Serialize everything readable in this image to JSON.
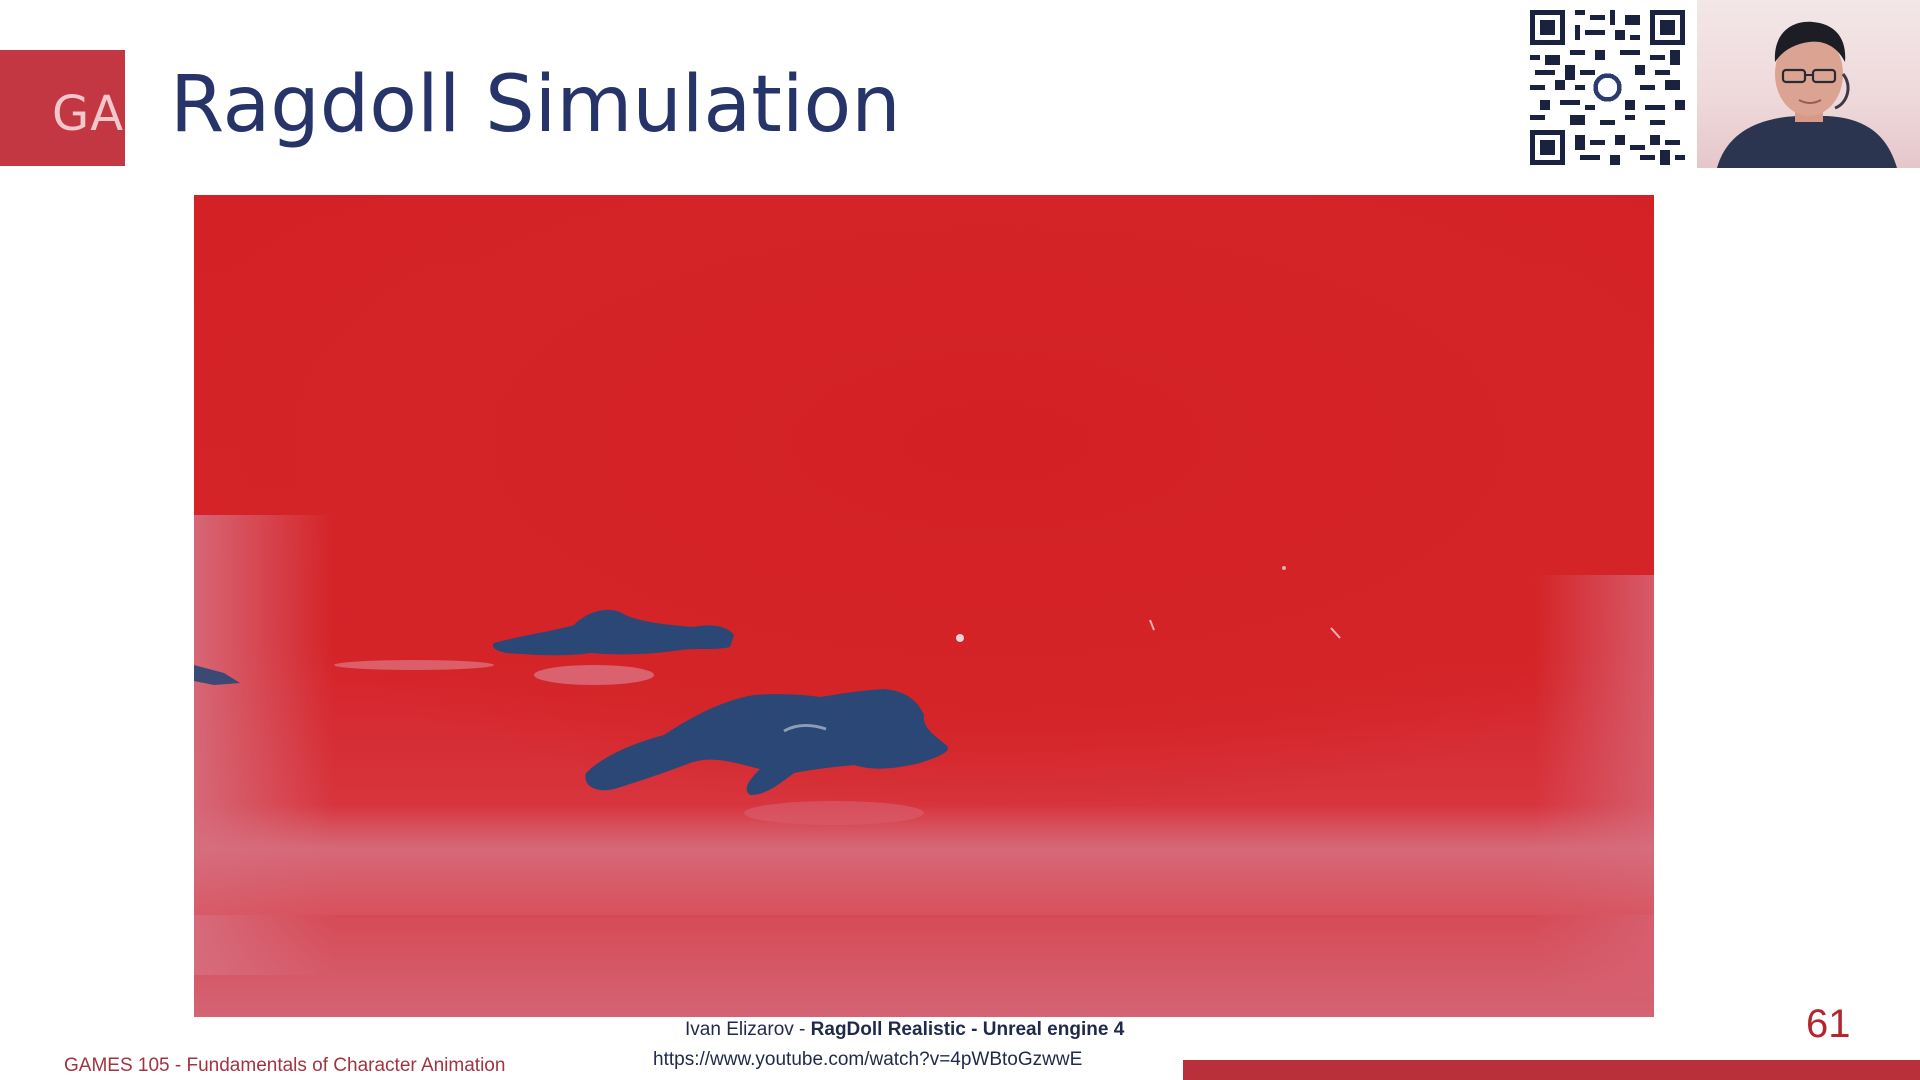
{
  "slide": {
    "logo_text": "GA",
    "title": "Ragdoll Simulation",
    "page_number": "61",
    "course_footer": "GAMES 105 - Fundamentals of Character Animation"
  },
  "video_caption": {
    "author": "Ivan Elizarov - ",
    "video_title": "RagDoll Realistic",
    "separator": " - ",
    "engine": "Unreal engine 4",
    "url": "https://www.youtube.com/watch?v=4pWBtoGzwwE"
  },
  "colors": {
    "accent": "#c23742",
    "title": "#27346a",
    "video_red": "#d42126",
    "silhouette": "#2a4775"
  }
}
